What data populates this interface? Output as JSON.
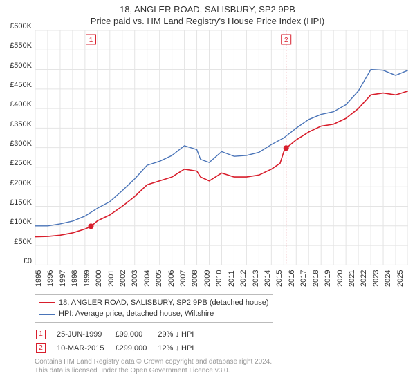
{
  "title": "18, ANGLER ROAD, SALISBURY, SP2 9PB",
  "subtitle": "Price paid vs. HM Land Registry's House Price Index (HPI)",
  "chart": {
    "type": "line",
    "background_color": "#ffffff",
    "grid_color": "#e4e4e4",
    "axis_color": "#888888",
    "tick_font_size": 11,
    "ylim": [
      0,
      600000
    ],
    "ytick_step": 50000,
    "y_ticks": [
      "£0",
      "£50K",
      "£100K",
      "£150K",
      "£200K",
      "£250K",
      "£300K",
      "£350K",
      "£400K",
      "£450K",
      "£500K",
      "£550K",
      "£600K"
    ],
    "xlim": [
      1995,
      2025
    ],
    "x_ticks": [
      "1995",
      "1996",
      "1997",
      "1998",
      "1999",
      "2000",
      "2001",
      "2002",
      "2003",
      "2004",
      "2005",
      "2006",
      "2007",
      "2008",
      "2009",
      "2010",
      "2011",
      "2012",
      "2013",
      "2014",
      "2015",
      "2016",
      "2017",
      "2018",
      "2019",
      "2020",
      "2021",
      "2022",
      "2023",
      "2024",
      "2025"
    ],
    "series": [
      {
        "id": "price_paid",
        "label": "18, ANGLER ROAD, SALISBURY, SP2 9PB (detached house)",
        "color": "#d81e2c",
        "line_width": 1.6,
        "data": [
          [
            1995,
            72000
          ],
          [
            1996,
            73000
          ],
          [
            1997,
            76000
          ],
          [
            1998,
            82000
          ],
          [
            1999,
            92000
          ],
          [
            1999.5,
            99000
          ],
          [
            2000,
            113000
          ],
          [
            2001,
            128000
          ],
          [
            2002,
            150000
          ],
          [
            2003,
            175000
          ],
          [
            2004,
            205000
          ],
          [
            2005,
            215000
          ],
          [
            2006,
            225000
          ],
          [
            2007,
            245000
          ],
          [
            2008,
            240000
          ],
          [
            2008.3,
            225000
          ],
          [
            2009,
            215000
          ],
          [
            2010,
            235000
          ],
          [
            2011,
            225000
          ],
          [
            2012,
            225000
          ],
          [
            2013,
            230000
          ],
          [
            2014,
            245000
          ],
          [
            2014.7,
            260000
          ],
          [
            2015,
            290000
          ],
          [
            2015.2,
            299000
          ],
          [
            2016,
            320000
          ],
          [
            2017,
            340000
          ],
          [
            2018,
            355000
          ],
          [
            2019,
            360000
          ],
          [
            2020,
            375000
          ],
          [
            2021,
            400000
          ],
          [
            2022,
            435000
          ],
          [
            2023,
            440000
          ],
          [
            2024,
            435000
          ],
          [
            2025,
            445000
          ]
        ]
      },
      {
        "id": "hpi",
        "label": "HPI: Average price, detached house, Wiltshire",
        "color": "#4a74b8",
        "line_width": 1.4,
        "data": [
          [
            1995,
            100000
          ],
          [
            1996,
            100000
          ],
          [
            1997,
            105000
          ],
          [
            1998,
            112000
          ],
          [
            1999,
            125000
          ],
          [
            2000,
            145000
          ],
          [
            2001,
            162000
          ],
          [
            2002,
            190000
          ],
          [
            2003,
            220000
          ],
          [
            2004,
            255000
          ],
          [
            2005,
            265000
          ],
          [
            2006,
            280000
          ],
          [
            2007,
            305000
          ],
          [
            2008,
            295000
          ],
          [
            2008.3,
            270000
          ],
          [
            2009,
            262000
          ],
          [
            2010,
            290000
          ],
          [
            2011,
            278000
          ],
          [
            2012,
            280000
          ],
          [
            2013,
            288000
          ],
          [
            2014,
            308000
          ],
          [
            2015,
            325000
          ],
          [
            2016,
            350000
          ],
          [
            2017,
            372000
          ],
          [
            2018,
            385000
          ],
          [
            2019,
            392000
          ],
          [
            2020,
            410000
          ],
          [
            2021,
            445000
          ],
          [
            2022,
            500000
          ],
          [
            2023,
            498000
          ],
          [
            2024,
            485000
          ],
          [
            2025,
            498000
          ]
        ]
      }
    ],
    "sale_markers": [
      {
        "n": 1,
        "x": 1999.48,
        "y": 99000,
        "dot_color": "#d81e2c",
        "line_color": "#e57f88"
      },
      {
        "n": 2,
        "x": 2015.19,
        "y": 299000,
        "dot_color": "#d81e2c",
        "line_color": "#e57f88"
      }
    ]
  },
  "legend": {
    "border_color": "#bbbbbb",
    "items": [
      {
        "color": "#d81e2c",
        "label": "18, ANGLER ROAD, SALISBURY, SP2 9PB (detached house)"
      },
      {
        "color": "#4a74b8",
        "label": "HPI: Average price, detached house, Wiltshire"
      }
    ]
  },
  "sales": [
    {
      "n": "1",
      "date": "25-JUN-1999",
      "price": "£99,000",
      "delta": "29% ↓ HPI",
      "box_border": "#d81e2c",
      "box_text": "#d81e2c"
    },
    {
      "n": "2",
      "date": "10-MAR-2015",
      "price": "£299,000",
      "delta": "12% ↓ HPI",
      "box_border": "#d81e2c",
      "box_text": "#d81e2c"
    }
  ],
  "footer_line1": "Contains HM Land Registry data © Crown copyright and database right 2024.",
  "footer_line2": "This data is licensed under the Open Government Licence v3.0."
}
